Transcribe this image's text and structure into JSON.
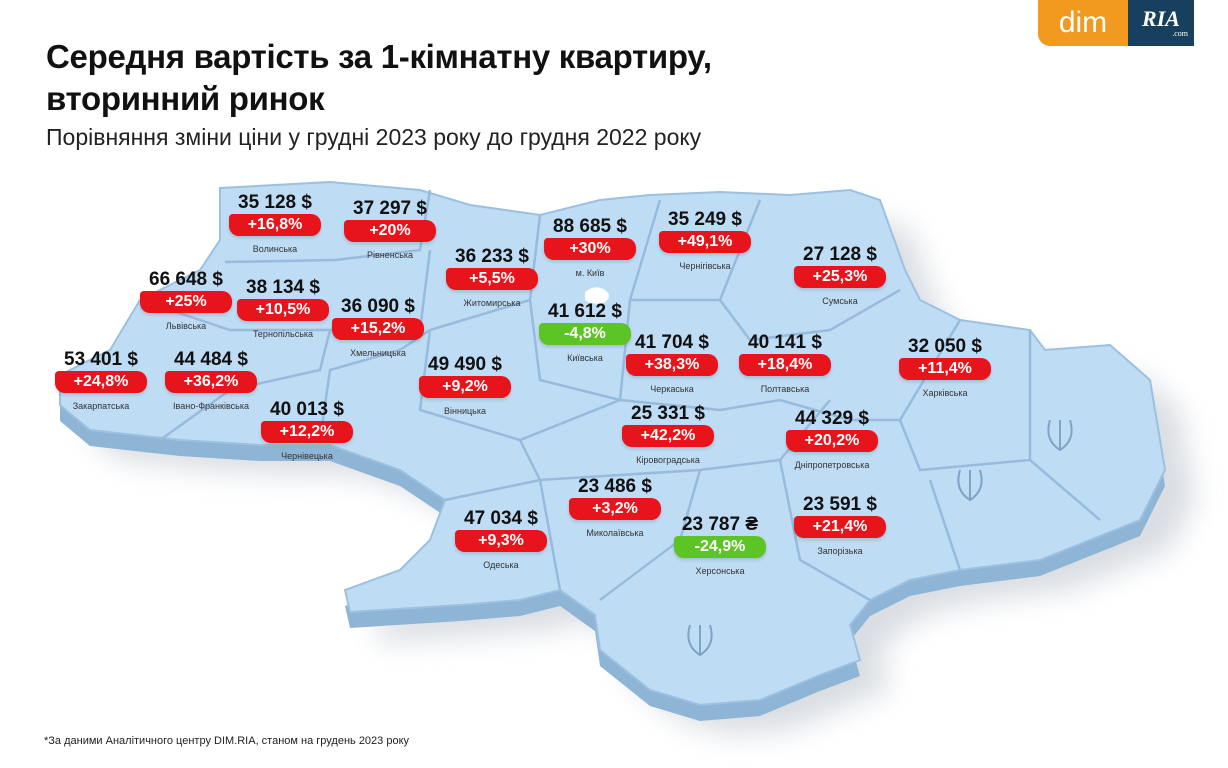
{
  "header": {
    "title_line1": "Середня вартість за 1-кімнатну квартиру,",
    "title_line2": "вторинний ринок",
    "subtitle": "Порівняння зміни ціни у грудні 2023 року до грудня 2022 року"
  },
  "logo": {
    "part1": "dim",
    "part2": "RIA",
    "part3": ".com"
  },
  "colors": {
    "increase": "#e8141b",
    "decrease": "#5cc425",
    "map_fill": "#bfdcf5"
  },
  "regions": [
    {
      "name": "Волинська",
      "price": "35 128 $",
      "change": "+16,8%"
    },
    {
      "name": "Рівненська",
      "price": "37 297 $",
      "change": "+20%"
    },
    {
      "name": "Житомирська",
      "price": "36 233 $",
      "change": "+5,5%"
    },
    {
      "name": "м. Київ",
      "price": "88 685 $",
      "change": "+30%"
    },
    {
      "name": "Чернігівська",
      "price": "35 249 $",
      "change": "+49,1%"
    },
    {
      "name": "Сумська",
      "price": "27 128 $",
      "change": "+25,3%"
    },
    {
      "name": "Львівська",
      "price": "66 648 $",
      "change": "+25%"
    },
    {
      "name": "Тернопільська",
      "price": "38 134 $",
      "change": "+10,5%"
    },
    {
      "name": "Хмельницька",
      "price": "36 090 $",
      "change": "+15,2%"
    },
    {
      "name": "Київська",
      "price": "41 612 $",
      "change": "-4,8%"
    },
    {
      "name": "Черкаська",
      "price": "41 704 $",
      "change": "+38,3%"
    },
    {
      "name": "Полтавська",
      "price": "40 141 $",
      "change": "+18,4%"
    },
    {
      "name": "Харківська",
      "price": "32 050 $",
      "change": "+11,4%"
    },
    {
      "name": "Закарпатська",
      "price": "53 401 $",
      "change": "+24,8%"
    },
    {
      "name": "Івано-Франківська",
      "price": "44 484 $",
      "change": "+36,2%"
    },
    {
      "name": "Вінницька",
      "price": "49 490 $",
      "change": "+9,2%"
    },
    {
      "name": "Чернівецька",
      "price": "40 013 $",
      "change": "+12,2%"
    },
    {
      "name": "Кіровоградська",
      "price": "25 331 $",
      "change": "+42,2%"
    },
    {
      "name": "Дніпропетровська",
      "price": "44 329 $",
      "change": "+20,2%"
    },
    {
      "name": "Миколаївська",
      "price": "23 486 $",
      "change": "+3,2%"
    },
    {
      "name": "Одеська",
      "price": "47 034 $",
      "change": "+9,3%"
    },
    {
      "name": "Херсонська",
      "price": "23 787 ₴",
      "change": "-24,9%"
    },
    {
      "name": "Запорізька",
      "price": "23 591 $",
      "change": "+21,4%"
    }
  ],
  "footnote": "*За даними Аналітичного центру DIM.RIA, станом на грудень 2023 року"
}
